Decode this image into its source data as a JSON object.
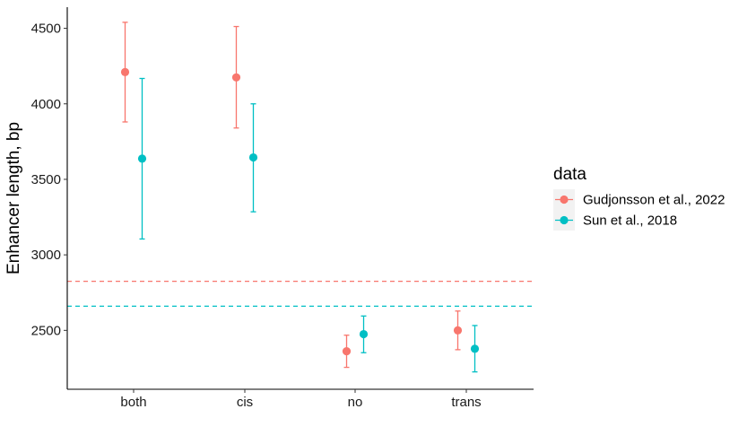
{
  "chart_data": {
    "type": "scatter",
    "title": "",
    "xlabel": "",
    "ylabel": "Enhancer length, bp",
    "categories": [
      "both",
      "cis",
      "no",
      "trans"
    ],
    "ylim": [
      2110,
      4640
    ],
    "yticks": [
      2500,
      3000,
      3500,
      4000,
      4500
    ],
    "grid": false,
    "legend": {
      "title": "data",
      "placement": "right"
    },
    "series": [
      {
        "name": "Gudjonsson et al., 2022",
        "color": "#F8766D",
        "values": [
          4210,
          4175,
          2362,
          2500
        ],
        "lower": [
          3880,
          3840,
          2255,
          2372
        ],
        "upper": [
          4540,
          4512,
          2468,
          2628
        ],
        "reference_line": 2825
      },
      {
        "name": "Sun et al., 2018",
        "color": "#00BFC4",
        "values": [
          3637,
          3645,
          2475,
          2378
        ],
        "lower": [
          3105,
          3285,
          2352,
          2225
        ],
        "upper": [
          4168,
          4000,
          2595,
          2532
        ],
        "reference_line": 2660
      }
    ]
  }
}
